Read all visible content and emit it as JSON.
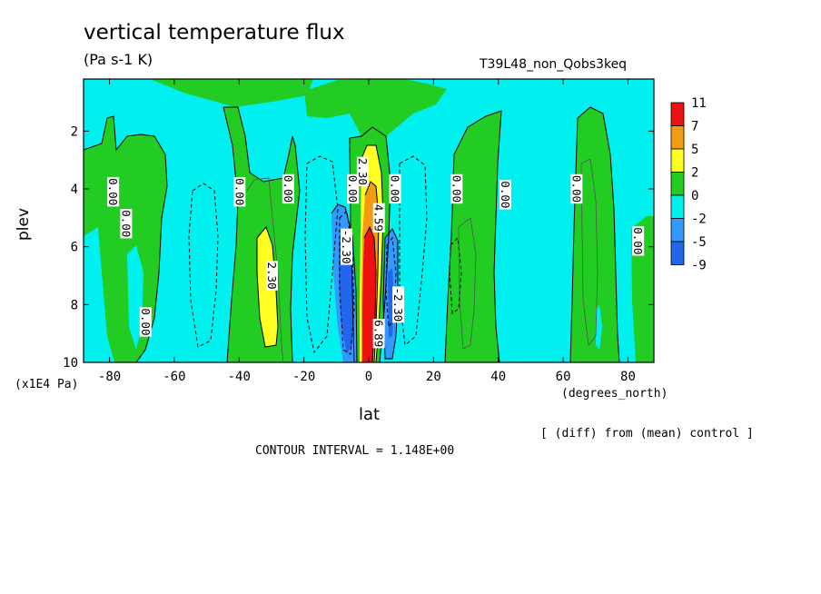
{
  "chart_data": {
    "type": "heatmap",
    "title": "vertical temperature flux",
    "units": "(Pa s-1 K)",
    "run_id": "T39L48_non_Qobs3keq",
    "xlabel": "lat",
    "xunits": "(degrees_north)",
    "ylabel": "plev",
    "yscale": "(x1E4 Pa)",
    "note": "[ (diff) from (mean) control ]",
    "contour_interval": "CONTOUR INTERVAL = 1.148E+00",
    "xlim": [
      -88,
      88
    ],
    "ylim": [
      10,
      0.2
    ],
    "x_ticks": [
      -80,
      -60,
      -40,
      -20,
      0,
      20,
      40,
      60,
      80
    ],
    "x_tick_labels": [
      "-80",
      "-60",
      "-40",
      "-20",
      "0",
      "20",
      "40",
      "60",
      "80"
    ],
    "y_ticks": [
      2,
      4,
      6,
      8,
      10
    ],
    "y_tick_labels": [
      "2",
      "4",
      "6",
      "8",
      "10"
    ],
    "legend": {
      "labels": [
        "11",
        "7",
        "5",
        "2",
        "0",
        "-2",
        "-5",
        "-9"
      ],
      "colors": [
        "#ee1111",
        "#f39c12",
        "#ffff22",
        "#22cc22",
        "#00f0f0",
        "#3399ff",
        "#2266ee"
      ]
    },
    "level_colors": {
      "neg_5": "#2266ee",
      "neg_2": "#3399ff",
      "neg_0": "#00f0f0",
      "pos_0": "#22cc22",
      "pos_2": "#ffff22",
      "pos_5": "#f39c12",
      "pos_7": "#ee1111"
    },
    "contour_labels": [
      {
        "text": "0.00",
        "lon": -79,
        "plev": 4.1
      },
      {
        "text": "0.00",
        "lon": -75,
        "plev": 5.2
      },
      {
        "text": "0.00",
        "lon": -69,
        "plev": 8.6
      },
      {
        "text": "0.00",
        "lon": -40,
        "plev": 4.1
      },
      {
        "text": "0.00",
        "lon": -25,
        "plev": 4.0
      },
      {
        "text": "0.00",
        "lon": -5,
        "plev": 4.0
      },
      {
        "text": "2.30",
        "lon": -30,
        "plev": 7.0
      },
      {
        "text": "-2.30",
        "lon": -7,
        "plev": 6.0
      },
      {
        "text": "2.30",
        "lon": -2,
        "plev": 3.4
      },
      {
        "text": "4.59",
        "lon": 3,
        "plev": 5.0
      },
      {
        "text": "6.89",
        "lon": 3,
        "plev": 9.0
      },
      {
        "text": "0.00",
        "lon": 8,
        "plev": 4.0
      },
      {
        "text": "-2.30",
        "lon": 9,
        "plev": 8.0
      },
      {
        "text": "0.00",
        "lon": 27,
        "plev": 4.0
      },
      {
        "text": "0.00",
        "lon": 42,
        "plev": 4.2
      },
      {
        "text": "0.00",
        "lon": 64,
        "plev": 4.0
      },
      {
        "text": "0.00",
        "lon": 83,
        "plev": 5.8
      }
    ]
  }
}
